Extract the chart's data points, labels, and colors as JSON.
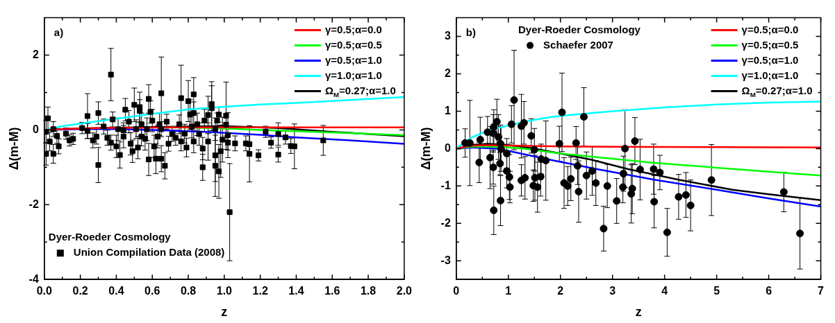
{
  "chart_data": [
    {
      "type": "scatter",
      "title": "a)",
      "xlabel": "z",
      "ylabel": "Δ(m-M)",
      "xlim": [
        0,
        2
      ],
      "xticks": [
        {
          "value": 0,
          "label": "0.0"
        },
        {
          "value": 0.2,
          "label": "0.2"
        },
        {
          "value": 0.4,
          "label": "0.4"
        },
        {
          "value": 0.6,
          "label": "0.6"
        },
        {
          "value": 0.8,
          "label": "0.8"
        },
        {
          "value": 1,
          "label": "1.0"
        },
        {
          "value": 1.2,
          "label": "1.2"
        },
        {
          "value": 1.4,
          "label": "1.4"
        },
        {
          "value": 1.6,
          "label": "1.6"
        },
        {
          "value": 1.8,
          "label": "1.8"
        },
        {
          "value": 2,
          "label": "2.0"
        }
      ],
      "ylim": [
        -4,
        3
      ],
      "yticks": [
        -4,
        -2,
        0,
        2
      ],
      "legend": "top right",
      "legend_title": "Dyer-Roeder Cosmology",
      "series": [
        {
          "name": "γ=0.5;α=0.0",
          "type": "line",
          "color": "#ff0000",
          "marker": "none",
          "x": [
            0,
            0.1,
            0.3,
            0.5,
            0.8,
            1.0,
            1.5,
            2.0
          ],
          "values": [
            0,
            0.02,
            0.05,
            0.06,
            0.07,
            0.07,
            0.07,
            0.07
          ]
        },
        {
          "name": "γ=0.5;α=0.5",
          "type": "line",
          "color": "#00ff00",
          "marker": "none",
          "x": [
            0.7,
            1.0,
            1.2,
            1.5,
            2.0
          ],
          "values": [
            0.07,
            0.04,
            0,
            -0.05,
            -0.14
          ]
        },
        {
          "name": "γ=0.5;α=1.0",
          "type": "line",
          "color": "#0000ff",
          "marker": "none",
          "x": [
            0,
            0.2,
            0.4,
            0.6,
            0.9,
            1.2,
            1.4,
            1.7,
            2.0
          ],
          "values": [
            0,
            0.02,
            0.02,
            0,
            -0.05,
            -0.13,
            -0.2,
            -0.28,
            -0.37
          ]
        },
        {
          "name": "γ=1.0;α=1.0",
          "type": "line",
          "color": "#00ffff",
          "marker": "none",
          "x": [
            0,
            0.1,
            0.2,
            0.4,
            0.6,
            0.8,
            1.0,
            1.2,
            1.4,
            1.7,
            2.0
          ],
          "values": [
            0,
            0.1,
            0.17,
            0.3,
            0.43,
            0.55,
            0.62,
            0.68,
            0.72,
            0.8,
            0.88
          ]
        },
        {
          "name": "Ω$_{M}$=0.27;α=1.0",
          "type": "line",
          "color": "#000000",
          "marker": "none",
          "x": [
            0,
            0.2,
            0.5,
            0.8,
            1.0,
            1.3,
            1.6,
            2.0
          ],
          "values": [
            0,
            0.04,
            0.07,
            0.09,
            0.1,
            0.05,
            -0.05,
            -0.17
          ]
        },
        {
          "name": "Union Compilation Data (2008)",
          "color": "#000000",
          "marker": "square",
          "x": [
            0.37,
            0.65,
            0.76,
            0.83,
            0.58,
            0.8,
            0.93,
            0.93,
            1.01,
            0.97,
            0.3,
            0.24,
            0.02,
            0.45,
            0.5,
            0.53,
            0.53,
            0.59,
            0.91,
            0.81,
            0.83,
            0.3,
            0.58,
            0.62,
            0.65,
            0.67,
            0.42,
            0.88,
            0.95,
            0.97,
            1.03,
            0.95,
            0.98,
            0.88,
            0.91,
            0.99,
            1.02,
            1.02,
            1.06,
            1.01,
            1.12,
            1.14,
            1.14,
            1.19,
            1.23,
            1.26,
            1.3,
            1.3,
            1.34,
            1.37,
            1.39,
            1.55,
            0.01,
            0.05,
            0.03,
            0.01,
            0.05,
            0.08,
            0.07,
            0.12,
            0.14,
            0.16,
            0.21,
            0.24,
            0.27,
            0.29,
            0.33,
            0.35,
            0.38,
            0.4,
            0.41,
            0.44,
            0.47,
            0.48,
            0.49,
            0.51,
            0.52,
            0.54,
            0.56,
            0.57,
            0.6,
            0.61,
            0.63,
            0.64,
            0.68,
            0.69,
            0.71,
            0.73,
            0.75,
            0.76,
            0.78,
            0.79,
            0.82,
            0.83,
            0.85,
            0.86,
            0.89,
            0.95,
            0.96,
            0.37,
            0.44,
            0.54,
            0.65
          ],
          "values": [
            1.48,
            0.98,
            0.85,
            0.95,
            0.83,
            0.77,
            0.69,
            0.58,
            0.38,
            0.41,
            0.45,
            0.37,
            0.31,
            0.54,
            0.67,
            0.61,
            0.51,
            0.48,
            0.4,
            0.41,
            0.45,
            -0.94,
            -0.79,
            -0.77,
            -0.77,
            -0.96,
            -0.67,
            -1.0,
            -0.96,
            -1.11,
            -2.2,
            -0.68,
            -0.57,
            -0.5,
            -0.31,
            -0.26,
            -0.14,
            -0.34,
            -0.36,
            0.14,
            -0.36,
            -0.38,
            -0.64,
            -0.68,
            -0.05,
            -0.34,
            -0.11,
            -0.66,
            -0.2,
            -0.43,
            -0.44,
            -0.28,
            -0.64,
            -0.64,
            -0.31,
            -0.05,
            0.02,
            -0.44,
            -0.16,
            -0.1,
            -0.28,
            -0.24,
            0.05,
            -0.03,
            -0.28,
            -0.18,
            0.09,
            -0.21,
            0.28,
            -0.44,
            0.02,
            -0.18,
            0.22,
            -0.37,
            -0.57,
            0.02,
            -0.47,
            0.15,
            -0.24,
            0.02,
            0.25,
            -0.44,
            -0.18,
            0.15,
            0.22,
            -0.37,
            -0.11,
            -0.21,
            0.15,
            -0.31,
            -0.1,
            -0.47,
            0.09,
            -0.31,
            0.15,
            -0.11,
            0.25,
            0.02,
            0.25,
            -0.34,
            -0.01,
            -0.18,
            0.02
          ],
          "errors": [
            0.7,
            0.97,
            0.88,
            0.45,
            0.38,
            0.55,
            0.6,
            0.6,
            0.9,
            0.2,
            0.3,
            0.6,
            0.3,
            0.3,
            0.45,
            0.4,
            0.3,
            0.3,
            0.5,
            0.4,
            0.3,
            0.47,
            0.43,
            0.4,
            0.35,
            0.35,
            0.35,
            0.35,
            0.82,
            0.72,
            1.3,
            0.7,
            0.7,
            0.3,
            0.5,
            0.6,
            0.6,
            0.2,
            0.2,
            0.3,
            0.2,
            0.25,
            0.75,
            0.15,
            0.15,
            0.15,
            0.3,
            0.2,
            0.18,
            0.2,
            0.6,
            0.4,
            0.3,
            0.25,
            0.25,
            0.3,
            0.2,
            0.2,
            0.2,
            0.15,
            0.15,
            0.15,
            0.15,
            0.2,
            0.2,
            0.2,
            0.2,
            0.2,
            0.2,
            0.3,
            0.3,
            0.3,
            0.3,
            0.3,
            0.3,
            0.25,
            0.3,
            0.3,
            0.3,
            0.3,
            0.3,
            0.3,
            0.3,
            0.3,
            0.2,
            0.2,
            0.2,
            0.2,
            0.25,
            0.25,
            0.25,
            0.25,
            0.3,
            0.3,
            0.3,
            0.3,
            0.3,
            0.3,
            0.2,
            0.2,
            0.2,
            0.25,
            0.2
          ]
        }
      ]
    },
    {
      "type": "scatter",
      "title": "b)",
      "xlabel": "z",
      "ylabel": "Δ(m-M)",
      "xlim": [
        0,
        7
      ],
      "xticks": [
        0,
        1,
        2,
        3,
        4,
        5,
        6,
        7
      ],
      "ylim": [
        -3.5,
        3.5
      ],
      "yticks": [
        -3,
        -2,
        -1,
        0,
        1,
        2,
        3
      ],
      "legend": "top right",
      "legend_title": "Dyer-Roeder Cosmology",
      "series": [
        {
          "name": "γ=0.5;α=0.0",
          "type": "line",
          "color": "#ff0000",
          "marker": "none",
          "x": [
            0,
            0.25,
            0.5,
            1,
            2,
            3,
            5,
            7
          ],
          "values": [
            0,
            0.07,
            0.09,
            0.08,
            0.06,
            0.05,
            0.04,
            0.03
          ]
        },
        {
          "name": "γ=0.5;α=0.5",
          "type": "line",
          "color": "#00ff00",
          "marker": "none",
          "x": [
            0,
            0.25,
            0.5,
            1,
            1.3,
            2,
            2.5,
            3,
            3.8,
            5,
            6,
            7
          ],
          "values": [
            0,
            0.05,
            0.06,
            0.03,
            0,
            -0.13,
            -0.2,
            -0.27,
            -0.38,
            -0.51,
            -0.62,
            -0.72
          ]
        },
        {
          "name": "γ=0.5;α=1.0",
          "type": "line",
          "color": "#0000ff",
          "marker": "none",
          "x": [
            0,
            0.3,
            0.8,
            1.3,
            1.8,
            2.7,
            3.8,
            5,
            6,
            7
          ],
          "values": [
            0,
            0.03,
            0,
            -0.15,
            -0.3,
            -0.55,
            -0.83,
            -1.1,
            -1.33,
            -1.55
          ]
        },
        {
          "name": "γ=1.0;α=1.0",
          "type": "line",
          "color": "#00ffff",
          "marker": "none",
          "x": [
            0,
            0.15,
            0.3,
            0.5,
            0.8,
            1.3,
            1.8,
            2.2,
            3,
            4,
            5,
            6,
            7
          ],
          "values": [
            0,
            0.17,
            0.3,
            0.42,
            0.55,
            0.72,
            0.84,
            0.9,
            1.0,
            1.1,
            1.18,
            1.23,
            1.26
          ]
        },
        {
          "name": "Ω$_{M}$=0.27;α=1.0",
          "type": "line",
          "color": "#000000",
          "marker": "none",
          "x": [
            0,
            0.3,
            0.6,
            1,
            1.5,
            2,
            2.6,
            3.3,
            4.3,
            5.3,
            6,
            7
          ],
          "values": [
            0,
            0.1,
            0.13,
            0.1,
            0,
            -0.13,
            -0.3,
            -0.55,
            -0.84,
            -1.1,
            -1.22,
            -1.38
          ]
        },
        {
          "name": "Schaefer 2007",
          "color": "#000000",
          "marker": "circle",
          "x": [
            0.17,
            0.26,
            0.46,
            0.44,
            0.6,
            0.65,
            0.72,
            0.71,
            0.71,
            0.72,
            0.78,
            0.81,
            0.84,
            0.85,
            0.86,
            0.85,
            0.97,
            0.97,
            1.02,
            1.03,
            1.06,
            1.11,
            1.25,
            1.25,
            1.3,
            1.32,
            1.44,
            1.5,
            1.48,
            1.51,
            1.56,
            1.62,
            1.63,
            1.72,
            1.98,
            2.03,
            2.07,
            2.14,
            2.2,
            2.3,
            2.33,
            2.35,
            2.45,
            2.5,
            2.61,
            2.68,
            2.83,
            2.9,
            3.08,
            3.21,
            3.2,
            3.24,
            3.36,
            3.38,
            3.43,
            3.53,
            3.79,
            3.8,
            3.91,
            4.05,
            4.27,
            4.41,
            4.5,
            4.9,
            6.29,
            6.6
          ],
          "values": [
            0.15,
            0.15,
            0.24,
            -0.37,
            0.44,
            -0.24,
            0.58,
            0.41,
            -0.5,
            -1.65,
            0.72,
            0.31,
            -0.4,
            0.13,
            -0.01,
            -1.39,
            -0.13,
            -0.6,
            -0.76,
            -1.03,
            0.65,
            1.3,
            0.6,
            -0.85,
            0.69,
            -0.78,
            0.34,
            -0.03,
            -0.99,
            -0.78,
            -1.03,
            -0.75,
            -0.28,
            -0.32,
            0.13,
            0.97,
            -0.92,
            -1.0,
            -0.81,
            0.15,
            -0.46,
            -1.15,
            0.85,
            -0.72,
            -0.6,
            -0.92,
            -2.14,
            -1.0,
            -1.4,
            -0.67,
            -1.03,
            0.0,
            -1.21,
            -1.07,
            0.2,
            -0.56,
            -0.55,
            -1.42,
            -0.64,
            -2.24,
            -1.29,
            -1.24,
            -1.52,
            -0.84,
            -1.16,
            -2.27
          ],
          "errors": [
            0.38,
            1.14,
            0.6,
            0.54,
            0.42,
            0.83,
            0.46,
            0.5,
            0.45,
            0.65,
            0.6,
            0.6,
            0.3,
            0.5,
            0.6,
            0.67,
            0.4,
            0.45,
            0.6,
            0.42,
            0.5,
            1.33,
            0.85,
            0.42,
            0.57,
            0.57,
            0.46,
            0.57,
            0.42,
            0.6,
            0.67,
            0.52,
            0.4,
            1.06,
            0.47,
            1.05,
            0.68,
            0.52,
            0.58,
            0.44,
            0.5,
            0.82,
            0.78,
            0.63,
            0.65,
            0.6,
            0.6,
            0.58,
            0.6,
            0.47,
            0.42,
            1.04,
            0.78,
            0.67,
            0.63,
            0.81,
            0.67,
            0.7,
            0.46,
            0.64,
            0.6,
            0.6,
            0.68,
            0.95,
            0.53,
            0.95
          ]
        }
      ]
    }
  ]
}
